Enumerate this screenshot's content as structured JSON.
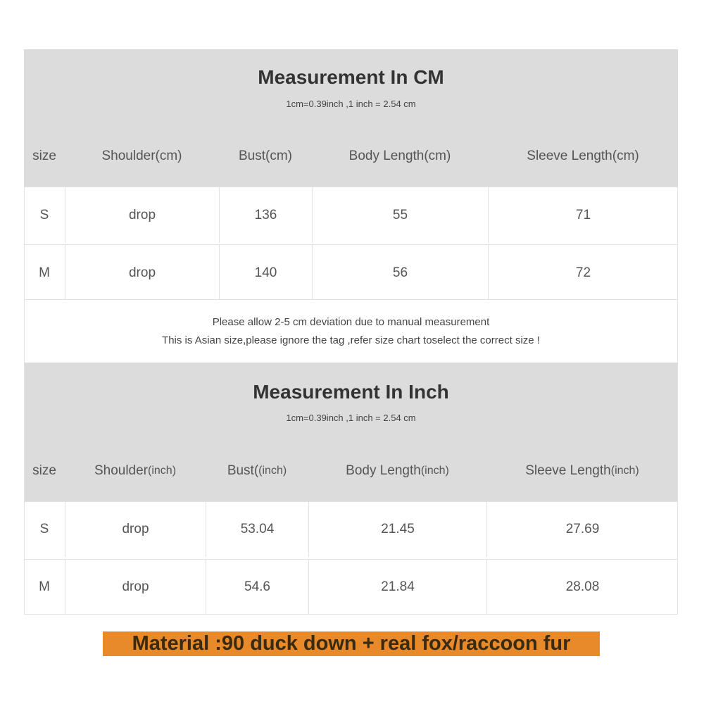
{
  "cm_table": {
    "title": "Measurement In CM",
    "subtitle": "1cm=0.39inch ,1 inch = 2.54 cm",
    "headers": [
      {
        "main": "size",
        "unit": ""
      },
      {
        "main": "Shoulder(cm)",
        "unit": ""
      },
      {
        "main": "Bust(cm)",
        "unit": ""
      },
      {
        "main": "Body Length(cm)",
        "unit": ""
      },
      {
        "main": "Sleeve Length(cm)",
        "unit": ""
      }
    ],
    "rows": [
      [
        "S",
        "drop",
        "136",
        "55",
        "71"
      ],
      [
        "M",
        "drop",
        "140",
        "56",
        "72"
      ]
    ]
  },
  "note": {
    "line1": "Please allow 2-5 cm deviation due to manual measurement",
    "line2": "This is Asian size,please ignore the tag ,refer size chart toselect the correct size !"
  },
  "inch_table": {
    "title": "Measurement In Inch",
    "subtitle": "1cm=0.39inch ,1 inch = 2.54 cm",
    "headers": [
      {
        "main": "size",
        "unit": ""
      },
      {
        "main": "Shoulder",
        "unit": "(inch)"
      },
      {
        "main": "Bust(",
        "unit": "(inch)"
      },
      {
        "main": "Body Length",
        "unit": "(inch)"
      },
      {
        "main": "Sleeve Length",
        "unit": "(inch)"
      }
    ],
    "rows": [
      [
        "S",
        "drop",
        "53.04",
        "21.45",
        "27.69"
      ],
      [
        "M",
        "drop",
        "54.6",
        "21.84",
        "28.08"
      ]
    ]
  },
  "material": {
    "text": "Material :90 duck down + real fox/raccoon fur",
    "color": "#e8892a"
  }
}
